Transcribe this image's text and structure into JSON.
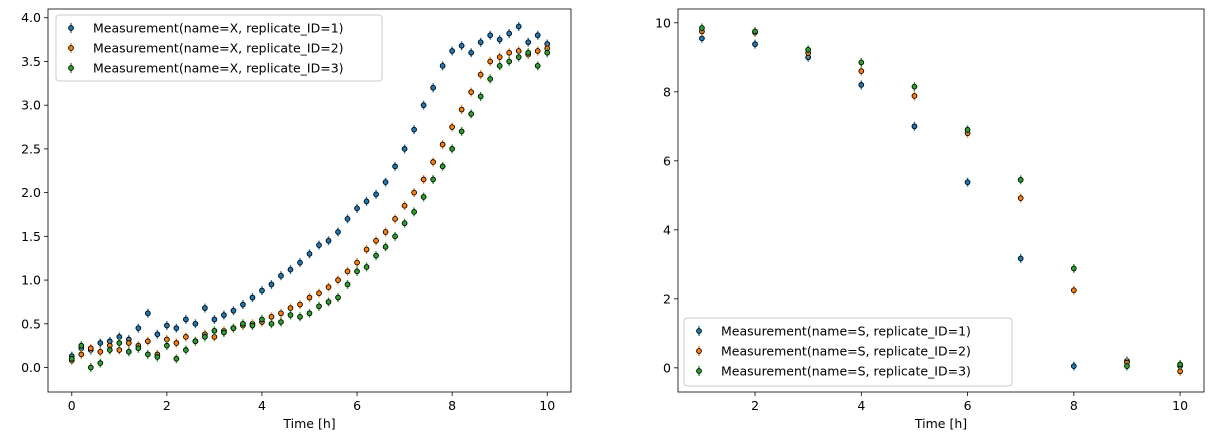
{
  "chart_data": [
    {
      "type": "scatter",
      "xlabel": "Time [h]",
      "ylabel": "",
      "xlim": [
        -0.5,
        10.5
      ],
      "ylim": [
        -0.28,
        4.1
      ],
      "xticks": [
        0,
        2,
        4,
        6,
        8,
        10
      ],
      "yticks": [
        0.0,
        0.5,
        1.0,
        1.5,
        2.0,
        2.5,
        3.0,
        3.5,
        4.0
      ],
      "ytick_labels": [
        "0.0",
        "0.5",
        "1.0",
        "1.5",
        "2.0",
        "2.5",
        "3.0",
        "3.5",
        "4.0"
      ],
      "legend_position": "top-left",
      "error_bars": true,
      "series": [
        {
          "name": "Measurement(name=X, replicate_ID=1)",
          "color": "#1f77b4",
          "edge": "#000000",
          "x": [
            0.0,
            0.2,
            0.4,
            0.6,
            0.8,
            1.0,
            1.2,
            1.4,
            1.6,
            1.8,
            2.0,
            2.2,
            2.4,
            2.6,
            2.8,
            3.0,
            3.2,
            3.4,
            3.6,
            3.8,
            4.0,
            4.2,
            4.4,
            4.6,
            4.8,
            5.0,
            5.2,
            5.4,
            5.6,
            5.8,
            6.0,
            6.2,
            6.4,
            6.6,
            6.8,
            7.0,
            7.2,
            7.4,
            7.6,
            7.8,
            8.0,
            8.2,
            8.4,
            8.6,
            8.8,
            9.0,
            9.2,
            9.4,
            9.6,
            9.8,
            10.0
          ],
          "y": [
            0.13,
            0.22,
            0.2,
            0.28,
            0.3,
            0.35,
            0.32,
            0.45,
            0.62,
            0.38,
            0.48,
            0.45,
            0.55,
            0.5,
            0.68,
            0.55,
            0.6,
            0.65,
            0.72,
            0.8,
            0.88,
            0.95,
            1.05,
            1.12,
            1.2,
            1.3,
            1.4,
            1.45,
            1.55,
            1.7,
            1.82,
            1.9,
            1.98,
            2.12,
            2.3,
            2.5,
            2.72,
            3.0,
            3.2,
            3.45,
            3.62,
            3.68,
            3.6,
            3.72,
            3.8,
            3.75,
            3.82,
            3.9,
            3.72,
            3.8,
            3.7
          ]
        },
        {
          "name": "Measurement(name=X, replicate_ID=2)",
          "color": "#ff7f0e",
          "edge": "#000000",
          "x": [
            0.0,
            0.2,
            0.4,
            0.6,
            0.8,
            1.0,
            1.2,
            1.4,
            1.6,
            1.8,
            2.0,
            2.2,
            2.4,
            2.6,
            2.8,
            3.0,
            3.2,
            3.4,
            3.6,
            3.8,
            4.0,
            4.2,
            4.4,
            4.6,
            4.8,
            5.0,
            5.2,
            5.4,
            5.6,
            5.8,
            6.0,
            6.2,
            6.4,
            6.6,
            6.8,
            7.0,
            7.2,
            7.4,
            7.6,
            7.8,
            8.0,
            8.2,
            8.4,
            8.6,
            8.8,
            9.0,
            9.2,
            9.4,
            9.6,
            9.8,
            10.0
          ],
          "y": [
            0.08,
            0.15,
            0.22,
            0.18,
            0.25,
            0.2,
            0.28,
            0.25,
            0.3,
            0.15,
            0.32,
            0.28,
            0.35,
            0.3,
            0.38,
            0.35,
            0.42,
            0.45,
            0.48,
            0.5,
            0.52,
            0.58,
            0.62,
            0.68,
            0.72,
            0.8,
            0.85,
            0.92,
            1.0,
            1.1,
            1.2,
            1.35,
            1.45,
            1.55,
            1.7,
            1.85,
            2.0,
            2.15,
            2.35,
            2.55,
            2.75,
            2.95,
            3.15,
            3.35,
            3.5,
            3.55,
            3.6,
            3.62,
            3.58,
            3.62,
            3.65
          ]
        },
        {
          "name": "Measurement(name=X, replicate_ID=3)",
          "color": "#2ca02c",
          "edge": "#000000",
          "x": [
            0.0,
            0.2,
            0.4,
            0.6,
            0.8,
            1.0,
            1.2,
            1.4,
            1.6,
            1.8,
            2.0,
            2.2,
            2.4,
            2.6,
            2.8,
            3.0,
            3.2,
            3.4,
            3.6,
            3.8,
            4.0,
            4.2,
            4.4,
            4.6,
            4.8,
            5.0,
            5.2,
            5.4,
            5.6,
            5.8,
            6.0,
            6.2,
            6.4,
            6.6,
            6.8,
            7.0,
            7.2,
            7.4,
            7.6,
            7.8,
            8.0,
            8.2,
            8.4,
            8.6,
            8.8,
            9.0,
            9.2,
            9.4,
            9.6,
            9.8,
            10.0
          ],
          "y": [
            0.1,
            0.25,
            0.0,
            0.05,
            0.2,
            0.28,
            0.18,
            0.22,
            0.15,
            0.12,
            0.25,
            0.1,
            0.2,
            0.3,
            0.35,
            0.42,
            0.4,
            0.45,
            0.5,
            0.48,
            0.55,
            0.5,
            0.52,
            0.6,
            0.58,
            0.62,
            0.7,
            0.75,
            0.8,
            0.95,
            1.1,
            1.15,
            1.28,
            1.38,
            1.5,
            1.65,
            1.78,
            1.95,
            2.15,
            2.3,
            2.5,
            2.7,
            2.9,
            3.1,
            3.3,
            3.45,
            3.5,
            3.55,
            3.6,
            3.45,
            3.6
          ]
        }
      ]
    },
    {
      "type": "scatter",
      "xlabel": "Time [h]",
      "ylabel": "",
      "xlim": [
        0.55,
        10.45
      ],
      "ylim": [
        -0.7,
        10.4
      ],
      "xticks": [
        2,
        4,
        6,
        8,
        10
      ],
      "yticks": [
        0,
        2,
        4,
        6,
        8,
        10
      ],
      "legend_position": "bottom-left",
      "error_bars": true,
      "series": [
        {
          "name": "Measurement(name=S, replicate_ID=1)",
          "color": "#1f77b4",
          "edge": "#000000",
          "x": [
            1,
            2,
            3,
            4,
            5,
            6,
            7,
            8,
            9,
            10
          ],
          "y": [
            9.55,
            9.38,
            9.0,
            8.2,
            7.0,
            5.38,
            3.17,
            0.05,
            0.2,
            0.05
          ]
        },
        {
          "name": "Measurement(name=S, replicate_ID=2)",
          "color": "#ff7f0e",
          "edge": "#000000",
          "x": [
            1,
            2,
            3,
            4,
            5,
            6,
            7,
            8,
            9,
            10
          ],
          "y": [
            9.75,
            9.72,
            9.12,
            8.6,
            7.88,
            6.8,
            4.92,
            2.25,
            0.15,
            -0.1
          ]
        },
        {
          "name": "Measurement(name=S, replicate_ID=3)",
          "color": "#2ca02c",
          "edge": "#000000",
          "x": [
            1,
            2,
            3,
            4,
            5,
            6,
            7,
            8,
            9,
            10
          ],
          "y": [
            9.85,
            9.75,
            9.22,
            8.85,
            8.15,
            6.9,
            5.45,
            2.88,
            0.05,
            0.1
          ]
        }
      ]
    }
  ]
}
